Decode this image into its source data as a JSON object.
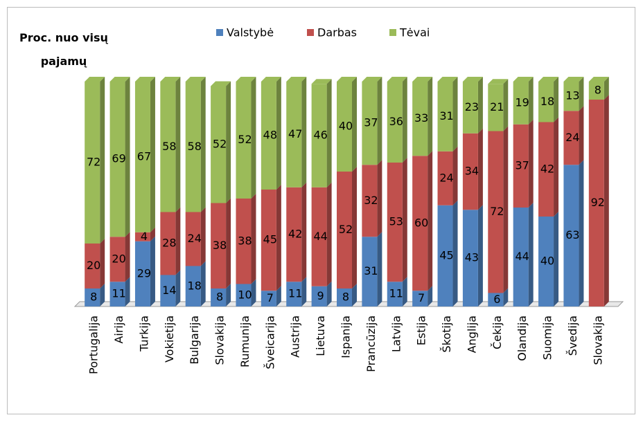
{
  "chart_data": {
    "type": "stacked_bar_3d",
    "title": "Proc. nuo visų pajamų",
    "categories": [
      "Portugalija",
      "Airija",
      "Turkija",
      "Vokietija",
      "Bulgarija",
      "Slovakija",
      "Rumunija",
      "Šveicarija",
      "Austrija",
      "Lietuva",
      "Ispanija",
      "Prancūzija",
      "Latvija",
      "Estija",
      "Škotija",
      "Anglija",
      "Čekija",
      "Olandija",
      "Suomija",
      "Švedija",
      "Slovakija"
    ],
    "series": [
      {
        "name": "Valstybė",
        "color": "#4f81bd",
        "values": [
          8,
          11,
          29,
          14,
          18,
          8,
          10,
          7,
          11,
          9,
          8,
          31,
          11,
          7,
          45,
          43,
          6,
          44,
          40,
          63,
          null
        ]
      },
      {
        "name": "Darbas",
        "color": "#c0504d",
        "values": [
          20,
          20,
          4,
          28,
          24,
          38,
          38,
          45,
          42,
          44,
          52,
          32,
          53,
          60,
          24,
          34,
          72,
          37,
          42,
          24,
          92
        ]
      },
      {
        "name": "Tėvai",
        "color": "#9bbb59",
        "values": [
          72,
          69,
          67,
          58,
          58,
          52,
          52,
          48,
          47,
          46,
          40,
          37,
          36,
          33,
          31,
          23,
          21,
          19,
          18,
          13,
          8
        ]
      }
    ],
    "legend": "top"
  }
}
